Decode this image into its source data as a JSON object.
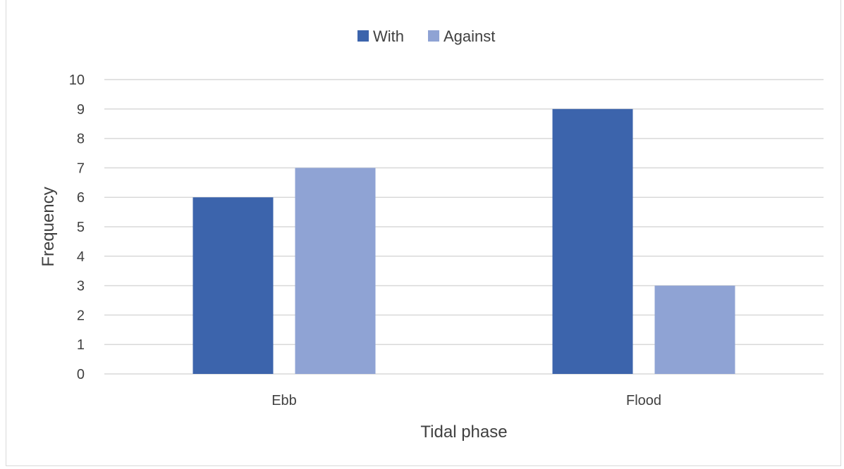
{
  "chart_data": {
    "type": "bar",
    "categories": [
      "Ebb",
      "Flood"
    ],
    "series": [
      {
        "name": "With",
        "values": [
          6,
          9
        ],
        "color": "#3c64ac"
      },
      {
        "name": "Against",
        "values": [
          7,
          3
        ],
        "color": "#8fa3d4"
      }
    ],
    "title": "",
    "xlabel": "Tidal phase",
    "ylabel": "Frequency",
    "ylim": [
      0,
      10
    ],
    "yticks": [
      0,
      1,
      2,
      3,
      4,
      5,
      6,
      7,
      8,
      9,
      10
    ],
    "grid": true,
    "legend_position": "top-center"
  }
}
